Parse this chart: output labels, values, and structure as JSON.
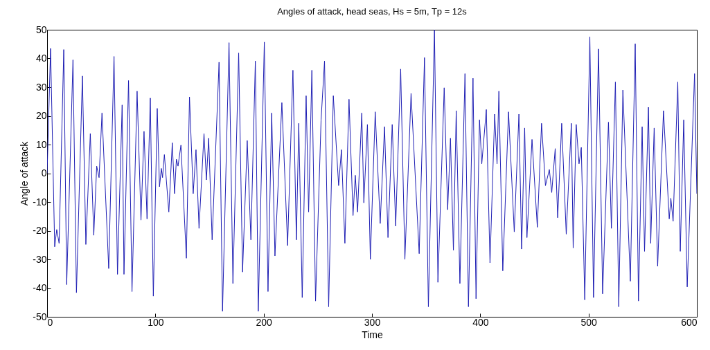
{
  "chart_data": {
    "type": "line",
    "title": "Angles of attack, head seas, Hs = 5m, Tp = 12s",
    "xlabel": "Time",
    "ylabel": "Angle of attack",
    "xlim": [
      0,
      600
    ],
    "xticks": [
      0,
      100,
      200,
      300,
      400,
      500,
      600
    ],
    "ylim": [
      -50,
      50
    ],
    "yticks": [
      -50,
      -40,
      -30,
      -20,
      -10,
      0,
      10,
      20,
      30,
      40,
      50
    ],
    "grid": false,
    "marker": "none",
    "line_style": "solid",
    "x": [
      0,
      3.2,
      7.0,
      8.9,
      11.1,
      15.4,
      18.1,
      23.9,
      27.1,
      32.6,
      35.8,
      39.9,
      43.1,
      45.8,
      48.0,
      50.7,
      56.9,
      61.8,
      65.0,
      69.3,
      71.0,
      75.2,
      78.4,
      83.1,
      86.7,
      89.5,
      92.3,
      95.3,
      98.1,
      101.7,
      103.8,
      105.5,
      106.6,
      108.3,
      112.4,
      115.6,
      117.7,
      119.4,
      120.9,
      123.6,
      128.6,
      131.5,
      134.9,
      137.5,
      140.3,
      144.9,
      147.1,
      149.2,
      152.4,
      158.8,
      162.0,
      168.0,
      171.6,
      176.9,
      180.5,
      184.8,
      188.2,
      192.3,
      195.0,
      200.6,
      204.0,
      207.4,
      210.4,
      216.8,
      222.1,
      227.0,
      230.2,
      232.4,
      235.6,
      239.2,
      241.5,
      244.5,
      247.9,
      253.0,
      256.2,
      260.0,
      264.3,
      269.2,
      271.8,
      275.0,
      278.8,
      282.5,
      284.6,
      286.7,
      290.6,
      292.5,
      295.8,
      298.5,
      303.0,
      307.6,
      311.6,
      314.8,
      318.7,
      321.9,
      326.5,
      330.4,
      336.1,
      343.6,
      348.5,
      352.1,
      357.7,
      360.9,
      366.7,
      369.9,
      372.5,
      375.2,
      377.8,
      381.2,
      385.9,
      389.1,
      393.3,
      396.1,
      399.3,
      401.4,
      405.6,
      409.0,
      413.3,
      415.5,
      417.2,
      420.8,
      426.1,
      431.4,
      435.7,
      438.2,
      441.0,
      443.1,
      447.8,
      452.7,
      456.6,
      460.2,
      463.8,
      466.0,
      469.2,
      471.5,
      475.2,
      479.4,
      484.1,
      485.8,
      488.6,
      491.2,
      493.3,
      496.5,
      501.2,
      504.6,
      509.2,
      513.0,
      518.4,
      521.1,
      524.8,
      527.9,
      531.7,
      538.6,
      543.1,
      546.1,
      549.5,
      551.7,
      555.3,
      557.4,
      560.6,
      563.8,
      569.2,
      574.5,
      576.0,
      578.1,
      582.4,
      584.7,
      587.9,
      591.1,
      597.9,
      600
    ],
    "series": [
      {
        "color": "#1f1fb4",
        "values": [
          0,
          43.5,
          -25.6,
          -19.6,
          -24.4,
          43.1,
          -38.8,
          39.5,
          -41.6,
          33.9,
          -24.8,
          13.8,
          -21.6,
          2.5,
          -1.5,
          21.0,
          -33.2,
          40.7,
          -35.2,
          23.8,
          -35.2,
          32.3,
          -41.2,
          28.6,
          -16.3,
          14.6,
          -15.9,
          26.2,
          -42.8,
          22.6,
          -4.7,
          1.7,
          -1.5,
          6.5,
          -13.5,
          10.6,
          -7.1,
          4.9,
          2.5,
          9.8,
          -29.6,
          26.6,
          -7.1,
          8.2,
          -19.2,
          13.8,
          -2.3,
          12.2,
          -23.2,
          38.7,
          -48.1,
          45.5,
          -38.4,
          41.9,
          -34.4,
          11.4,
          -23.2,
          39.1,
          -48.1,
          45.7,
          -41.2,
          21.0,
          -28.8,
          24.6,
          -25.2,
          35.9,
          -23.2,
          17.4,
          -43.3,
          27.0,
          -13.5,
          35.9,
          -44.5,
          18.6,
          39.1,
          -46.5,
          27.0,
          -4.3,
          8.2,
          -24.4,
          25.8,
          -14.7,
          -0.7,
          -13.5,
          21.0,
          -10.3,
          17.0,
          -30.0,
          21.4,
          -17.5,
          16.2,
          -22.4,
          17.0,
          -18.4,
          36.3,
          -30.0,
          27.8,
          -28.0,
          40.3,
          -46.5,
          49.9,
          -38.0,
          29.8,
          -12.7,
          12.2,
          -26.8,
          21.8,
          -38.4,
          34.7,
          -46.5,
          33.1,
          -43.7,
          18.6,
          3.3,
          22.2,
          -31.2,
          20.6,
          3.3,
          28.6,
          -34.0,
          21.4,
          -20.4,
          20.6,
          -26.4,
          15.8,
          -22.4,
          11.8,
          -18.8,
          17.4,
          -4.3,
          1.3,
          -6.7,
          8.6,
          -15.5,
          17.4,
          -21.2,
          17.4,
          -26.0,
          17.0,
          3.3,
          9.0,
          -44.1,
          47.5,
          -43.3,
          43.3,
          -42.0,
          17.8,
          -19.2,
          31.8,
          -46.5,
          29.0,
          -37.6,
          45.1,
          -44.5,
          16.2,
          -27.2,
          23.0,
          -24.4,
          15.8,
          -32.4,
          21.8,
          -15.9,
          -8.7,
          -16.7,
          31.8,
          -27.2,
          18.6,
          -39.6,
          34.7,
          -7.1
        ]
      }
    ]
  }
}
